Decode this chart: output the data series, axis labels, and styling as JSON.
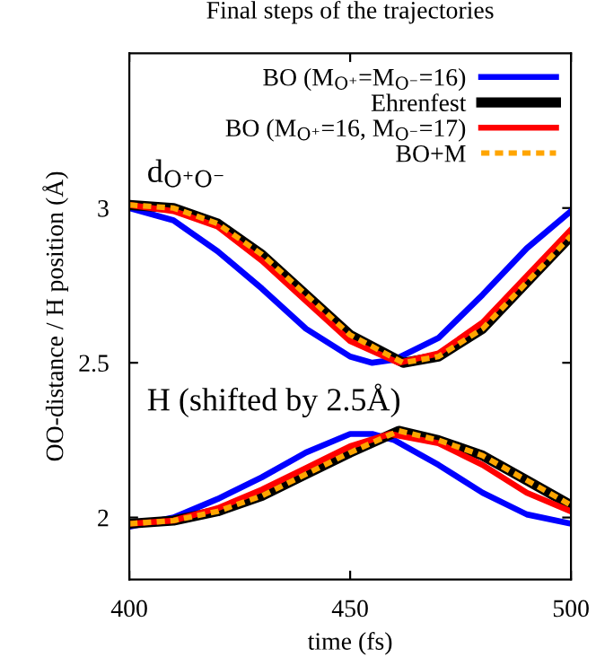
{
  "chart_data": {
    "type": "line",
    "title": "Final steps of the trajectories",
    "xlabel": "time (fs)",
    "ylabel": "OO-distance / H position (Å)",
    "xlim": [
      400,
      500
    ],
    "xticks": [
      400,
      450,
      500
    ],
    "ylim": [
      1.8,
      3.5
    ],
    "yticks": [
      2,
      2.5,
      3
    ],
    "grid": false,
    "legend": "top right",
    "annotations": [
      "d$_{O⁺O⁻}$",
      "H (shifted by 2.5Å)"
    ],
    "series": [
      {
        "name": "BO (M$_{O⁺}$=M$_{O⁻}$=16)",
        "color": "#0000ff",
        "line_style": "solid",
        "x": [
          400,
          410,
          420,
          430,
          440,
          450,
          455,
          460,
          470,
          480,
          490,
          500
        ],
        "values": [
          3.0,
          2.96,
          2.86,
          2.74,
          2.61,
          2.52,
          2.5,
          2.51,
          2.58,
          2.72,
          2.87,
          2.99
        ]
      },
      {
        "color": "#0000ff",
        "line_style": "solid",
        "x": [
          400,
          410,
          420,
          430,
          440,
          450,
          455,
          460,
          470,
          480,
          490,
          500
        ],
        "values": [
          1.97,
          2.0,
          2.06,
          2.13,
          2.21,
          2.27,
          2.27,
          2.25,
          2.17,
          2.08,
          2.01,
          1.98
        ]
      },
      {
        "name": "Ehrenfest",
        "color": "#000000",
        "line_style": "solid",
        "x": [
          400,
          410,
          420,
          430,
          440,
          450,
          462,
          470,
          480,
          490,
          500
        ],
        "values": [
          3.01,
          3.0,
          2.95,
          2.85,
          2.72,
          2.59,
          2.5,
          2.52,
          2.61,
          2.76,
          2.91
        ]
      },
      {
        "color": "#000000",
        "line_style": "solid",
        "x": [
          400,
          410,
          420,
          430,
          440,
          450,
          461,
          470,
          480,
          490,
          500
        ],
        "values": [
          1.98,
          1.99,
          2.02,
          2.07,
          2.14,
          2.21,
          2.28,
          2.25,
          2.2,
          2.12,
          2.04
        ]
      },
      {
        "name": "BO (M$_{O⁺}$=16, M$_{O⁻}$=17)",
        "color": "#ff0000",
        "line_style": "solid",
        "x": [
          400,
          410,
          420,
          430,
          440,
          450,
          461,
          470,
          480,
          490,
          500
        ],
        "values": [
          3.01,
          2.99,
          2.94,
          2.83,
          2.7,
          2.57,
          2.5,
          2.53,
          2.63,
          2.78,
          2.93
        ]
      },
      {
        "color": "#ff0000",
        "line_style": "solid",
        "x": [
          400,
          410,
          420,
          430,
          440,
          450,
          459,
          470,
          480,
          490,
          500
        ],
        "values": [
          1.98,
          1.99,
          2.03,
          2.09,
          2.16,
          2.23,
          2.27,
          2.24,
          2.17,
          2.08,
          2.02
        ]
      },
      {
        "name": "BO+M",
        "color": "#ffa500",
        "line_style": "dashed",
        "x": [
          400,
          410,
          420,
          430,
          440,
          450,
          462,
          470,
          480,
          490,
          500
        ],
        "values": [
          3.01,
          3.0,
          2.95,
          2.85,
          2.72,
          2.59,
          2.5,
          2.52,
          2.61,
          2.76,
          2.91
        ]
      },
      {
        "color": "#ffa500",
        "line_style": "dashed",
        "x": [
          400,
          410,
          420,
          430,
          440,
          450,
          461,
          470,
          480,
          490,
          500
        ],
        "values": [
          1.98,
          1.99,
          2.02,
          2.07,
          2.14,
          2.21,
          2.28,
          2.25,
          2.2,
          2.12,
          2.04
        ]
      }
    ]
  }
}
